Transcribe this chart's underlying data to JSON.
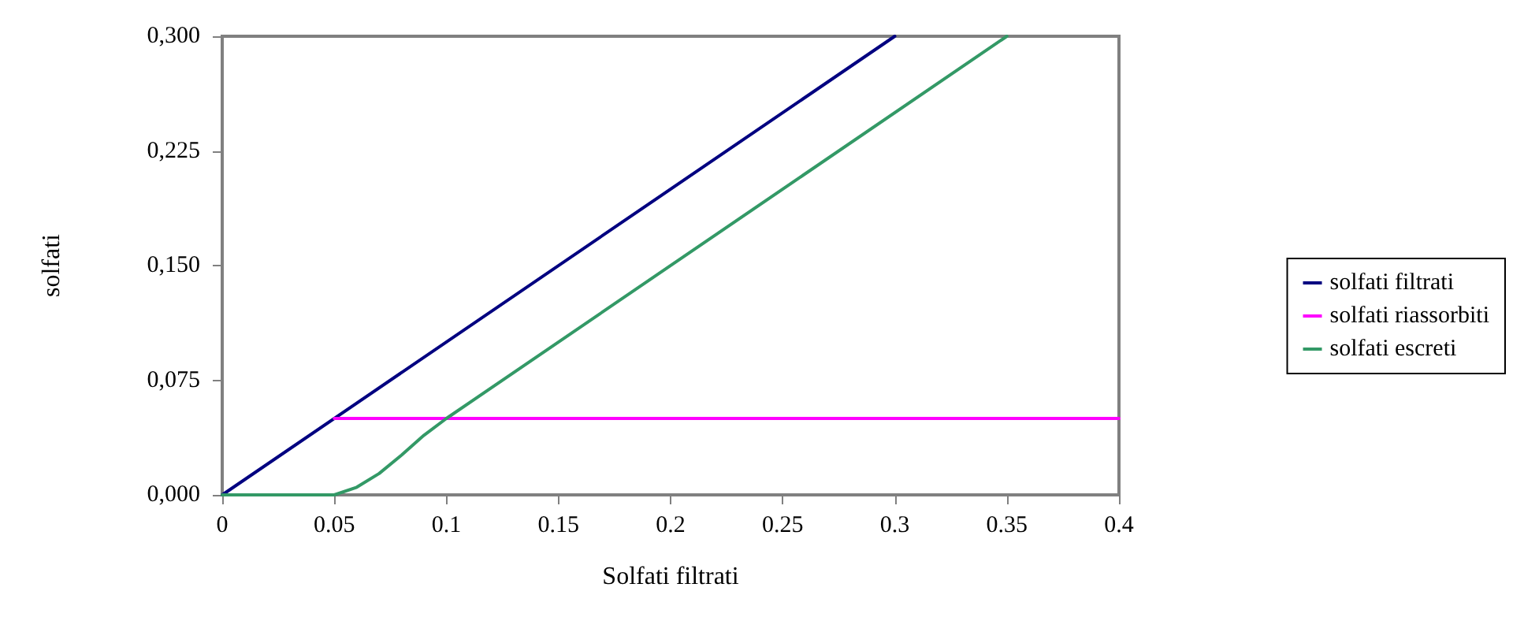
{
  "chart_data": {
    "type": "line",
    "xlabel": "Solfati filtrati",
    "ylabel": "solfati",
    "xlim": [
      0,
      0.4
    ],
    "xticks": [
      0,
      0.05,
      0.1,
      0.15,
      0.2,
      0.25,
      0.3,
      0.35,
      0.4
    ],
    "ylim": [
      0,
      0.3
    ],
    "yticks": [
      {
        "value": 0,
        "label": "0,000"
      },
      {
        "value": 0.075,
        "label": "0,075"
      },
      {
        "value": 0.15,
        "label": "0,150"
      },
      {
        "value": 0.225,
        "label": "0,225"
      },
      {
        "value": 0.3,
        "label": "0,300"
      }
    ],
    "series": [
      {
        "name": "solfati filtrati",
        "color": "#000080",
        "x": [
          0,
          0.3
        ],
        "values": [
          0,
          0.3
        ]
      },
      {
        "name": "solfati riassorbiti",
        "color": "#ff00ff",
        "x": [
          0.05,
          0.4
        ],
        "values": [
          0.05,
          0.05
        ]
      },
      {
        "name": "solfati escreti",
        "color": "#339966",
        "x": [
          0,
          0.05,
          0.06,
          0.07,
          0.08,
          0.09,
          0.1,
          0.35
        ],
        "values": [
          0,
          0,
          0.005,
          0.014,
          0.026,
          0.039,
          0.05,
          0.3
        ]
      }
    ],
    "grid": false,
    "legend": "right",
    "marker": "none",
    "line_style": "solid"
  }
}
